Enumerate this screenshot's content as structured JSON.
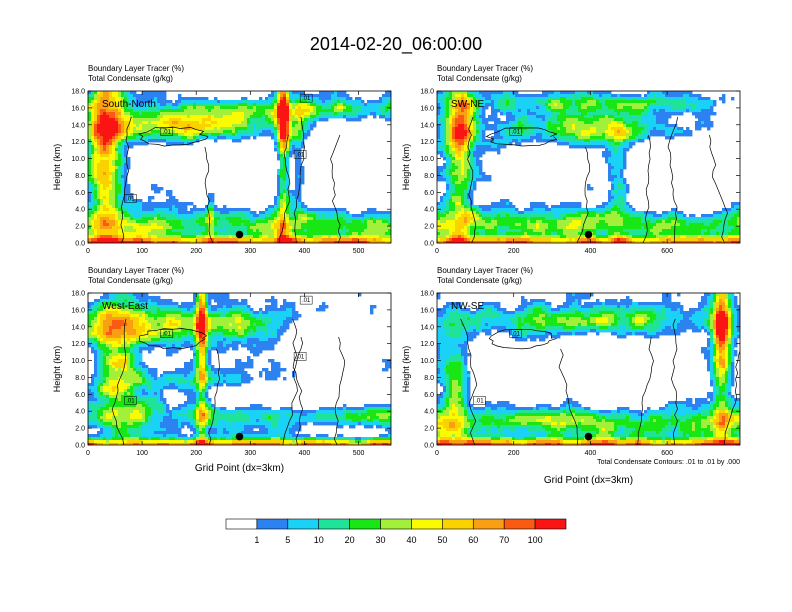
{
  "title": "2014-02-20_06:00:00",
  "contour_note": "Total Condensate Contours: .01 to .01 by .000",
  "colors": [
    "#ffffff",
    "#2b82f0",
    "#19d2f5",
    "#20e39a",
    "#18e615",
    "#a2f03a",
    "#fafa00",
    "#fad200",
    "#fa9f14",
    "#fa5a12",
    "#fa1414"
  ],
  "colorbar": {
    "labels": [
      "1",
      "5",
      "10",
      "20",
      "30",
      "40",
      "50",
      "60",
      "70",
      "100"
    ]
  },
  "chart_data": [
    {
      "type": "heatmap",
      "header_line1": "Boundary Layer Tracer   (%)",
      "header_line2": "Total Condensate   (g/kg)",
      "label": "South-North",
      "ylabel": "Height (km)",
      "xlabel": "",
      "xlim": [
        0,
        560
      ],
      "ylim": [
        0,
        18
      ],
      "xticks": [
        "0",
        "100",
        "200",
        "300",
        "400",
        "500"
      ],
      "yticks": [
        "0.0",
        "2.0",
        "4.0",
        "6.0",
        "8.0",
        "10.0",
        "12.0",
        "14.0",
        "16.0",
        "18.0"
      ],
      "contour_labels": [
        ".01",
        ".01",
        ".01",
        ".01"
      ],
      "marker": {
        "x": 280,
        "y": 1.0
      }
    },
    {
      "type": "heatmap",
      "header_line1": "Boundary Layer Tracer   (%)",
      "header_line2": "Total Condensate   (g/kg)",
      "label": "SW-NE",
      "ylabel": "Height (km)",
      "xlabel": "",
      "xlim": [
        0,
        790
      ],
      "ylim": [
        0,
        18
      ],
      "xticks": [
        "0",
        "200",
        "400",
        "600"
      ],
      "yticks": [
        "0.0",
        "2.0",
        "4.0",
        "6.0",
        "8.0",
        "10.0",
        "12.0",
        "14.0",
        "16.0",
        "18.0"
      ],
      "contour_labels": [
        ".01"
      ],
      "marker": {
        "x": 395,
        "y": 1.0
      }
    },
    {
      "type": "heatmap",
      "header_line1": "Boundary Layer Tracer   (%)",
      "header_line2": "Total Condensate   (g/kg)",
      "label": "West-East",
      "ylabel": "Height (km)",
      "xlabel": "Grid Point (dx=3km)",
      "xlim": [
        0,
        560
      ],
      "ylim": [
        0,
        18
      ],
      "xticks": [
        "0",
        "100",
        "200",
        "300",
        "400",
        "500"
      ],
      "yticks": [
        "0.0",
        "2.0",
        "4.0",
        "6.0",
        "8.0",
        "10.0",
        "12.0",
        "14.0",
        "16.0",
        "18.0"
      ],
      "contour_labels": [
        ".01",
        ".01",
        ".01",
        ".01"
      ],
      "marker": {
        "x": 280,
        "y": 1.0
      }
    },
    {
      "type": "heatmap",
      "header_line1": "Boundary Layer Tracer   (%)",
      "header_line2": "Total Condensate   (g/kg)",
      "label": "NW-SE",
      "ylabel": "Height (km)",
      "xlabel": "Grid Point (dx=3km)",
      "xlim": [
        0,
        790
      ],
      "ylim": [
        0,
        18
      ],
      "xticks": [
        "0",
        "200",
        "400",
        "600"
      ],
      "yticks": [
        "0.0",
        "2.0",
        "4.0",
        "6.0",
        "8.0",
        "10.0",
        "12.0",
        "14.0",
        "16.0",
        "18.0"
      ],
      "contour_labels": [
        ".01",
        ".01"
      ],
      "marker": {
        "x": 395,
        "y": 1.0
      }
    }
  ]
}
